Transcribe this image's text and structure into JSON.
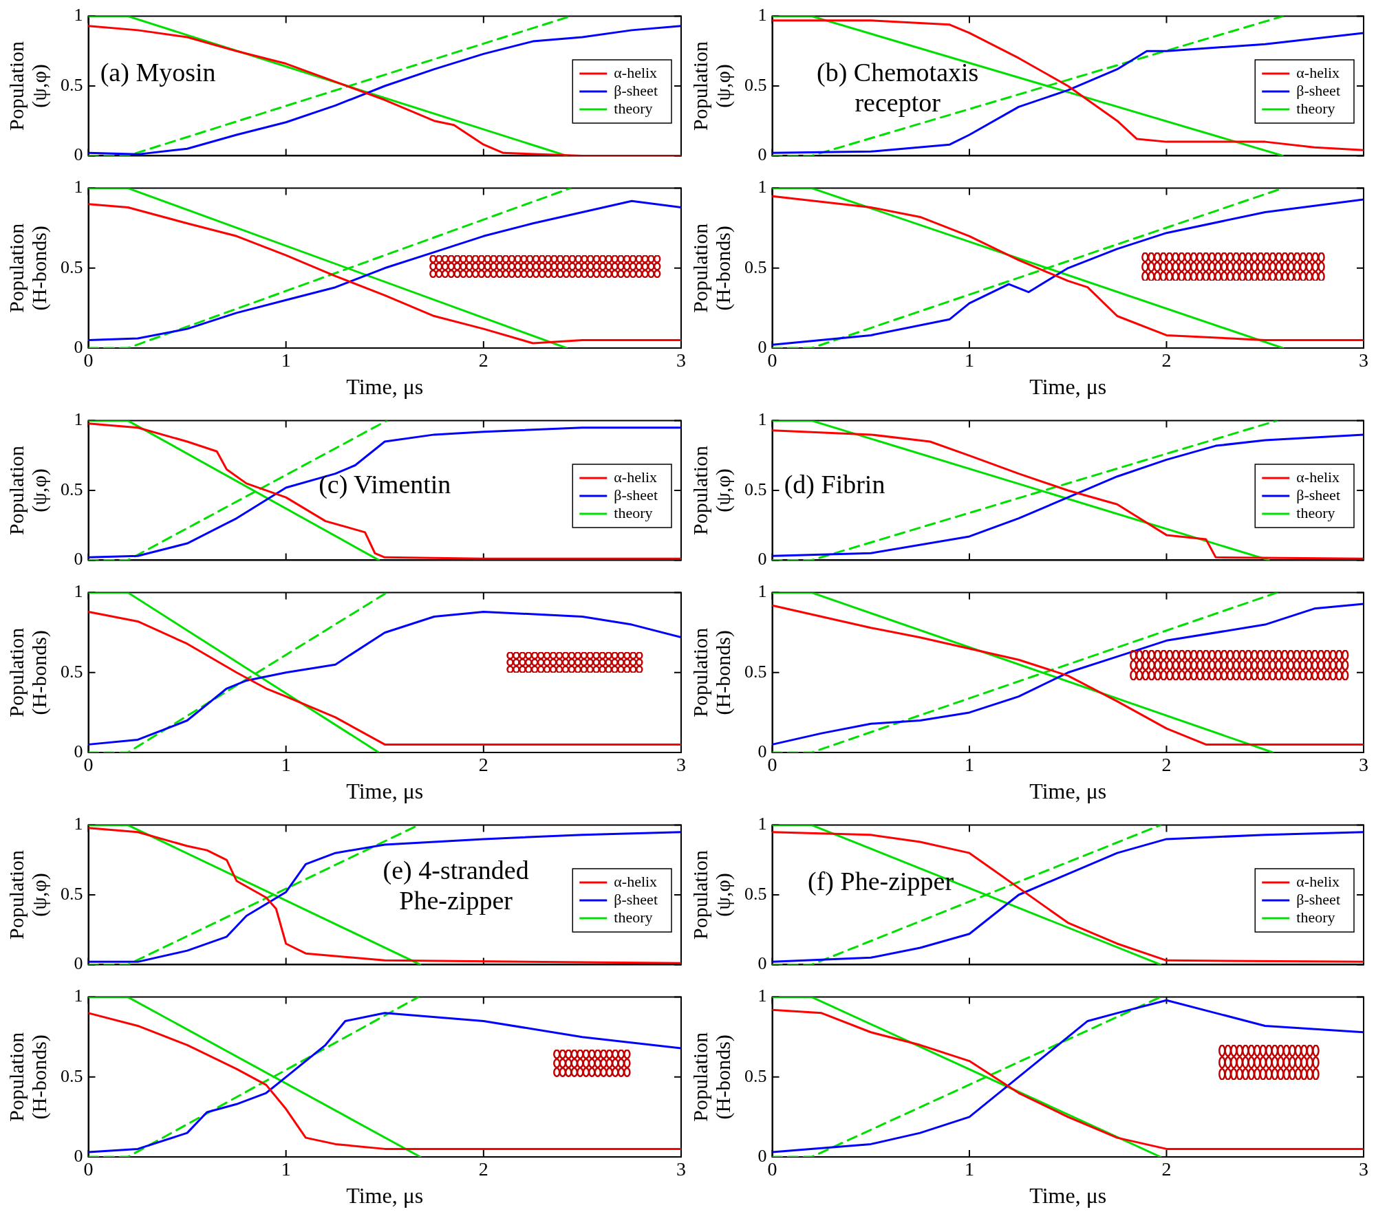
{
  "chart_data": [
    {
      "type": "line",
      "ylabel": "Population (ψ,φ)",
      "annotations": [
        "(a) Myosin"
      ],
      "legend": "right",
      "tick_labels": "y",
      "xlim": [
        0,
        3
      ],
      "xticks": [
        0,
        1,
        2,
        3
      ],
      "ylim": [
        0,
        1
      ],
      "yticks": [
        0,
        0.5,
        1
      ],
      "series": [
        {
          "name": "α-helix",
          "color": "#ff0000",
          "x": [
            0,
            0.25,
            0.5,
            0.75,
            1,
            1.25,
            1.5,
            1.75,
            1.85,
            2,
            2.1,
            2.5,
            3
          ],
          "values": [
            0.93,
            0.9,
            0.85,
            0.75,
            0.66,
            0.53,
            0.4,
            0.25,
            0.22,
            0.08,
            0.02,
            0,
            0
          ]
        },
        {
          "name": "β-sheet",
          "color": "#0000ff",
          "x": [
            0,
            0.25,
            0.5,
            0.75,
            1,
            1.25,
            1.5,
            1.75,
            2,
            2.25,
            2.5,
            2.75,
            3
          ],
          "values": [
            0.02,
            0.01,
            0.05,
            0.15,
            0.24,
            0.36,
            0.5,
            0.62,
            0.73,
            0.82,
            0.85,
            0.9,
            0.93
          ]
        },
        {
          "name": "theory",
          "color": "#00e000",
          "x": [
            0,
            0.2,
            2.42
          ],
          "values": [
            1,
            1,
            0
          ]
        },
        {
          "color": "#00e000",
          "line_style": "dashed",
          "x": [
            0,
            0.2,
            2.44
          ],
          "values": [
            0,
            0,
            1
          ]
        }
      ]
    },
    {
      "type": "line",
      "ylabel": "Population (ψ,φ)",
      "annotations": [
        "(b) Chemotaxis receptor"
      ],
      "legend": "right",
      "tick_labels": "y",
      "xlim": [
        0,
        3
      ],
      "xticks": [
        0,
        1,
        2,
        3
      ],
      "ylim": [
        0,
        1
      ],
      "yticks": [
        0,
        0.5,
        1
      ],
      "series": [
        {
          "name": "α-helix",
          "color": "#ff0000",
          "x": [
            0,
            0.5,
            0.9,
            1,
            1.25,
            1.5,
            1.75,
            1.85,
            2,
            2.5,
            2.75,
            3
          ],
          "values": [
            0.97,
            0.97,
            0.94,
            0.88,
            0.7,
            0.5,
            0.25,
            0.12,
            0.1,
            0.1,
            0.06,
            0.04
          ]
        },
        {
          "name": "β-sheet",
          "color": "#0000ff",
          "x": [
            0,
            0.5,
            0.9,
            1,
            1.25,
            1.5,
            1.75,
            1.9,
            2,
            2.5,
            3
          ],
          "values": [
            0.02,
            0.03,
            0.08,
            0.15,
            0.35,
            0.47,
            0.62,
            0.75,
            0.75,
            0.8,
            0.88
          ]
        },
        {
          "name": "theory",
          "color": "#00e000",
          "x": [
            0,
            0.2,
            2.59
          ],
          "values": [
            1,
            1,
            0
          ]
        },
        {
          "color": "#00e000",
          "line_style": "dashed",
          "x": [
            0,
            0.2,
            2.59
          ],
          "values": [
            0,
            0,
            1
          ]
        }
      ]
    },
    {
      "type": "line",
      "ylabel": "Population (H-bonds)",
      "xlabel": "Time, μs",
      "xlim": [
        0,
        3
      ],
      "xticks": [
        0,
        1,
        2,
        3
      ],
      "ylim": [
        0,
        1
      ],
      "yticks": [
        0,
        0.5,
        1
      ],
      "series": [
        {
          "color": "#ff0000",
          "x": [
            0,
            0.2,
            0.5,
            0.75,
            1,
            1.25,
            1.5,
            1.75,
            2,
            2.25,
            2.5,
            3
          ],
          "values": [
            0.9,
            0.88,
            0.78,
            0.7,
            0.58,
            0.45,
            0.33,
            0.2,
            0.12,
            0.03,
            0.05,
            0.05
          ]
        },
        {
          "color": "#0000ff",
          "x": [
            0,
            0.25,
            0.5,
            0.75,
            1,
            1.25,
            1.5,
            1.75,
            2,
            2.25,
            2.5,
            2.75,
            3
          ],
          "values": [
            0.05,
            0.06,
            0.12,
            0.22,
            0.3,
            0.38,
            0.5,
            0.6,
            0.7,
            0.78,
            0.85,
            0.92,
            0.88
          ]
        },
        {
          "color": "#00e000",
          "x": [
            0,
            0.2,
            2.42
          ],
          "values": [
            1,
            1,
            0
          ]
        },
        {
          "color": "#00e000",
          "line_style": "dashed",
          "x": [
            0,
            0.2,
            2.44
          ],
          "values": [
            0,
            0,
            1
          ]
        }
      ]
    },
    {
      "type": "line",
      "ylabel": "Population (H-bonds)",
      "xlabel": "Time, μs",
      "xlim": [
        0,
        3
      ],
      "xticks": [
        0,
        1,
        2,
        3
      ],
      "ylim": [
        0,
        1
      ],
      "yticks": [
        0,
        0.5,
        1
      ],
      "series": [
        {
          "color": "#ff0000",
          "x": [
            0,
            0.5,
            0.75,
            1,
            1.25,
            1.5,
            1.6,
            1.75,
            2,
            2.5,
            3
          ],
          "values": [
            0.95,
            0.88,
            0.82,
            0.7,
            0.55,
            0.42,
            0.38,
            0.2,
            0.08,
            0.05,
            0.05
          ]
        },
        {
          "color": "#0000ff",
          "x": [
            0,
            0.5,
            0.9,
            1,
            1.2,
            1.3,
            1.5,
            1.75,
            2,
            2.5,
            3
          ],
          "values": [
            0.02,
            0.08,
            0.18,
            0.28,
            0.4,
            0.35,
            0.5,
            0.62,
            0.72,
            0.85,
            0.93
          ]
        },
        {
          "color": "#00e000",
          "x": [
            0,
            0.2,
            2.59
          ],
          "values": [
            1,
            1,
            0
          ]
        },
        {
          "color": "#00e000",
          "line_style": "dashed",
          "x": [
            0,
            0.2,
            2.59
          ],
          "values": [
            0,
            0,
            1
          ]
        }
      ]
    },
    {
      "type": "line",
      "ylabel": "Population (ψ,φ)",
      "annotations": [
        "(c) Vimentin"
      ],
      "legend": "right",
      "tick_labels": "y",
      "xlim": [
        0,
        3
      ],
      "xticks": [
        0,
        1,
        2,
        3
      ],
      "ylim": [
        0,
        1
      ],
      "yticks": [
        0,
        0.5,
        1
      ],
      "series": [
        {
          "name": "α-helix",
          "color": "#ff0000",
          "x": [
            0,
            0.25,
            0.5,
            0.65,
            0.7,
            0.8,
            1,
            1.2,
            1.4,
            1.45,
            1.5,
            2,
            3
          ],
          "values": [
            0.98,
            0.95,
            0.85,
            0.78,
            0.65,
            0.55,
            0.45,
            0.28,
            0.2,
            0.05,
            0.02,
            0.01,
            0.01
          ]
        },
        {
          "name": "β-sheet",
          "color": "#0000ff",
          "x": [
            0,
            0.25,
            0.5,
            0.75,
            1,
            1.25,
            1.35,
            1.5,
            1.75,
            2,
            2.5,
            3
          ],
          "values": [
            0.02,
            0.03,
            0.12,
            0.3,
            0.52,
            0.62,
            0.68,
            0.85,
            0.9,
            0.92,
            0.95,
            0.95
          ]
        },
        {
          "name": "theory",
          "color": "#00e000",
          "x": [
            0,
            0.2,
            1.47
          ],
          "values": [
            1,
            1,
            0
          ]
        },
        {
          "color": "#00e000",
          "line_style": "dashed",
          "x": [
            0,
            0.2,
            1.51
          ],
          "values": [
            0,
            0,
            1
          ]
        }
      ]
    },
    {
      "type": "line",
      "ylabel": "Population (ψ,φ)",
      "annotations": [
        "(d) Fibrin"
      ],
      "legend": "right",
      "tick_labels": "y",
      "xlim": [
        0,
        3
      ],
      "xticks": [
        0,
        1,
        2,
        3
      ],
      "ylim": [
        0,
        1
      ],
      "yticks": [
        0,
        0.5,
        1
      ],
      "series": [
        {
          "name": "α-helix",
          "color": "#ff0000",
          "x": [
            0,
            0.5,
            0.8,
            1,
            1.25,
            1.5,
            1.75,
            2,
            2.2,
            2.25,
            3
          ],
          "values": [
            0.93,
            0.9,
            0.85,
            0.75,
            0.62,
            0.5,
            0.4,
            0.18,
            0.15,
            0.02,
            0.01
          ]
        },
        {
          "name": "β-sheet",
          "color": "#0000ff",
          "x": [
            0,
            0.5,
            1,
            1.25,
            1.5,
            1.75,
            2,
            2.25,
            2.5,
            2.75,
            3
          ],
          "values": [
            0.03,
            0.05,
            0.17,
            0.3,
            0.45,
            0.6,
            0.72,
            0.82,
            0.86,
            0.88,
            0.9
          ]
        },
        {
          "name": "theory",
          "color": "#00e000",
          "x": [
            0,
            0.2,
            2.52
          ],
          "values": [
            1,
            1,
            0
          ]
        },
        {
          "color": "#00e000",
          "line_style": "dashed",
          "x": [
            0,
            0.2,
            2.56
          ],
          "values": [
            0,
            0,
            1
          ]
        }
      ]
    },
    {
      "type": "line",
      "ylabel": "Population (H-bonds)",
      "xlabel": "Time, μs",
      "xlim": [
        0,
        3
      ],
      "xticks": [
        0,
        1,
        2,
        3
      ],
      "ylim": [
        0,
        1
      ],
      "yticks": [
        0,
        0.5,
        1
      ],
      "series": [
        {
          "color": "#ff0000",
          "x": [
            0,
            0.25,
            0.5,
            0.75,
            0.9,
            1,
            1.25,
            1.5,
            2,
            3
          ],
          "values": [
            0.88,
            0.82,
            0.68,
            0.5,
            0.4,
            0.35,
            0.22,
            0.05,
            0.05,
            0.05
          ]
        },
        {
          "color": "#0000ff",
          "x": [
            0,
            0.25,
            0.5,
            0.7,
            0.8,
            1,
            1.25,
            1.5,
            1.75,
            2,
            2.5,
            2.75,
            3
          ],
          "values": [
            0.05,
            0.08,
            0.2,
            0.4,
            0.45,
            0.5,
            0.55,
            0.75,
            0.85,
            0.88,
            0.85,
            0.8,
            0.72
          ]
        },
        {
          "color": "#00e000",
          "x": [
            0,
            0.2,
            1.47
          ],
          "values": [
            1,
            1,
            0
          ]
        },
        {
          "color": "#00e000",
          "line_style": "dashed",
          "x": [
            0,
            0.2,
            1.51
          ],
          "values": [
            0,
            0,
            1
          ]
        }
      ]
    },
    {
      "type": "line",
      "ylabel": "Population (H-bonds)",
      "xlabel": "Time, μs",
      "xlim": [
        0,
        3
      ],
      "xticks": [
        0,
        1,
        2,
        3
      ],
      "ylim": [
        0,
        1
      ],
      "yticks": [
        0,
        0.5,
        1
      ],
      "series": [
        {
          "color": "#ff0000",
          "x": [
            0,
            0.25,
            0.5,
            0.75,
            1,
            1.25,
            1.5,
            1.75,
            2,
            2.2,
            2.5,
            3
          ],
          "values": [
            0.92,
            0.85,
            0.78,
            0.72,
            0.65,
            0.58,
            0.48,
            0.32,
            0.15,
            0.05,
            0.05,
            0.05
          ]
        },
        {
          "color": "#0000ff",
          "x": [
            0,
            0.25,
            0.5,
            0.75,
            1,
            1.25,
            1.5,
            1.75,
            2,
            2.5,
            2.75,
            3
          ],
          "values": [
            0.05,
            0.12,
            0.18,
            0.2,
            0.25,
            0.35,
            0.5,
            0.6,
            0.7,
            0.8,
            0.9,
            0.93
          ]
        },
        {
          "color": "#00e000",
          "x": [
            0,
            0.2,
            2.54
          ],
          "values": [
            1,
            1,
            0
          ]
        },
        {
          "color": "#00e000",
          "line_style": "dashed",
          "x": [
            0,
            0.2,
            2.56
          ],
          "values": [
            0,
            0,
            1
          ]
        }
      ]
    },
    {
      "type": "line",
      "ylabel": "Population (ψ,φ)",
      "annotations": [
        "(e) 4-stranded Phe-zipper"
      ],
      "legend": "right",
      "tick_labels": "y",
      "xlim": [
        0,
        3
      ],
      "xticks": [
        0,
        1,
        2,
        3
      ],
      "ylim": [
        0,
        1
      ],
      "yticks": [
        0,
        0.5,
        1
      ],
      "series": [
        {
          "name": "α-helix",
          "color": "#ff0000",
          "x": [
            0,
            0.25,
            0.5,
            0.6,
            0.7,
            0.75,
            0.9,
            0.95,
            1,
            1.1,
            1.5,
            3
          ],
          "values": [
            0.98,
            0.95,
            0.85,
            0.82,
            0.75,
            0.6,
            0.48,
            0.4,
            0.15,
            0.08,
            0.03,
            0.01
          ]
        },
        {
          "name": "β-sheet",
          "color": "#0000ff",
          "x": [
            0,
            0.25,
            0.5,
            0.7,
            0.8,
            1,
            1.1,
            1.25,
            1.5,
            2,
            2.5,
            3
          ],
          "values": [
            0.02,
            0.02,
            0.1,
            0.2,
            0.35,
            0.52,
            0.72,
            0.8,
            0.86,
            0.9,
            0.93,
            0.95
          ]
        },
        {
          "name": "theory",
          "color": "#00e000",
          "x": [
            0,
            0.2,
            1.68
          ],
          "values": [
            1,
            1,
            0
          ]
        },
        {
          "color": "#00e000",
          "line_style": "dashed",
          "x": [
            0,
            0.2,
            1.67
          ],
          "values": [
            0,
            0,
            1
          ]
        }
      ]
    },
    {
      "type": "line",
      "ylabel": "Population (ψ,φ)",
      "annotations": [
        "(f) Phe-zipper"
      ],
      "legend": "right",
      "tick_labels": "y",
      "xlim": [
        0,
        3
      ],
      "xticks": [
        0,
        1,
        2,
        3
      ],
      "ylim": [
        0,
        1
      ],
      "yticks": [
        0,
        0.5,
        1
      ],
      "series": [
        {
          "name": "α-helix",
          "color": "#ff0000",
          "x": [
            0,
            0.5,
            0.75,
            1,
            1.25,
            1.5,
            1.75,
            2,
            3
          ],
          "values": [
            0.95,
            0.93,
            0.88,
            0.8,
            0.55,
            0.3,
            0.15,
            0.03,
            0.02
          ]
        },
        {
          "name": "β-sheet",
          "color": "#0000ff",
          "x": [
            0,
            0.5,
            0.75,
            1,
            1.25,
            1.5,
            1.75,
            2,
            2.5,
            3
          ],
          "values": [
            0.02,
            0.05,
            0.12,
            0.22,
            0.5,
            0.65,
            0.8,
            0.9,
            0.93,
            0.95
          ]
        },
        {
          "name": "theory",
          "color": "#00e000",
          "x": [
            0,
            0.2,
            1.97
          ],
          "values": [
            1,
            1,
            0
          ]
        },
        {
          "color": "#00e000",
          "line_style": "dashed",
          "x": [
            0,
            0.2,
            1.97
          ],
          "values": [
            0,
            0,
            1
          ]
        }
      ]
    },
    {
      "type": "line",
      "ylabel": "Population (H-bonds)",
      "xlabel": "Time, μs",
      "xlim": [
        0,
        3
      ],
      "xticks": [
        0,
        1,
        2,
        3
      ],
      "ylim": [
        0,
        1
      ],
      "yticks": [
        0,
        0.5,
        1
      ],
      "series": [
        {
          "color": "#ff0000",
          "x": [
            0,
            0.25,
            0.5,
            0.75,
            0.9,
            1,
            1.1,
            1.25,
            1.5,
            3
          ],
          "values": [
            0.9,
            0.82,
            0.7,
            0.55,
            0.45,
            0.3,
            0.12,
            0.08,
            0.05,
            0.05
          ]
        },
        {
          "color": "#0000ff",
          "x": [
            0,
            0.25,
            0.5,
            0.6,
            0.75,
            0.9,
            1,
            1.2,
            1.3,
            1.5,
            2,
            2.5,
            3
          ],
          "values": [
            0.03,
            0.05,
            0.15,
            0.28,
            0.33,
            0.4,
            0.5,
            0.7,
            0.85,
            0.9,
            0.85,
            0.75,
            0.68
          ]
        },
        {
          "color": "#00e000",
          "x": [
            0,
            0.2,
            1.68
          ],
          "values": [
            1,
            1,
            0
          ]
        },
        {
          "color": "#00e000",
          "line_style": "dashed",
          "x": [
            0,
            0.2,
            1.67
          ],
          "values": [
            0,
            0,
            1
          ]
        }
      ]
    },
    {
      "type": "line",
      "ylabel": "Population (H-bonds)",
      "xlabel": "Time, μs",
      "xlim": [
        0,
        3
      ],
      "xticks": [
        0,
        1,
        2,
        3
      ],
      "ylim": [
        0,
        1
      ],
      "yticks": [
        0,
        0.5,
        1
      ],
      "series": [
        {
          "color": "#ff0000",
          "x": [
            0,
            0.25,
            0.5,
            0.75,
            1,
            1.25,
            1.5,
            1.75,
            2,
            3
          ],
          "values": [
            0.92,
            0.9,
            0.78,
            0.7,
            0.6,
            0.4,
            0.25,
            0.12,
            0.05,
            0.05
          ]
        },
        {
          "color": "#0000ff",
          "x": [
            0,
            0.5,
            0.75,
            1,
            1.2,
            1.4,
            1.6,
            1.75,
            2,
            2.25,
            2.5,
            3
          ],
          "values": [
            0.03,
            0.08,
            0.15,
            0.25,
            0.45,
            0.65,
            0.85,
            0.9,
            0.98,
            0.9,
            0.82,
            0.78
          ]
        },
        {
          "color": "#00e000",
          "x": [
            0,
            0.2,
            1.97
          ],
          "values": [
            1,
            1,
            0
          ]
        },
        {
          "color": "#00e000",
          "line_style": "dashed",
          "x": [
            0,
            0.2,
            1.97
          ],
          "values": [
            0,
            0,
            1
          ]
        }
      ]
    }
  ]
}
